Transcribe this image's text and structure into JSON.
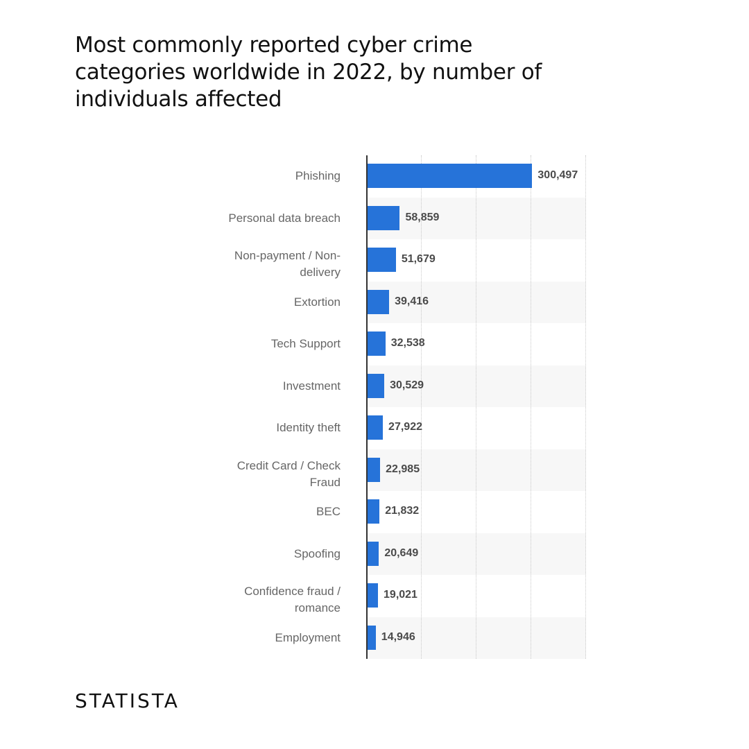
{
  "title": "Most commonly reported cyber crime categories worldwide in 2022, by number of individuals affected",
  "brand": "STATISTA",
  "chart_data": {
    "type": "bar",
    "orientation": "horizontal",
    "title": "Most commonly reported cyber crime categories worldwide in 2022, by number of individuals affected",
    "xlabel": "",
    "ylabel": "",
    "xlim": [
      0,
      400000
    ],
    "grid": true,
    "gridlines": [
      100000,
      200000,
      300000,
      400000
    ],
    "bar_color": "#2673d9",
    "categories": [
      "Phishing",
      "Personal data breach",
      "Non-payment / Non-delivery",
      "Extortion",
      "Tech Support",
      "Investment",
      "Identity theft",
      "Credit Card / Check Fraud",
      "BEC",
      "Spoofing",
      "Confidence fraud / romance",
      "Employment"
    ],
    "values": [
      300497,
      58859,
      51679,
      39416,
      32538,
      30529,
      27922,
      22985,
      21832,
      20649,
      19021,
      14946
    ],
    "value_labels": [
      "300,497",
      "58,859",
      "51,679",
      "39,416",
      "32,538",
      "30,529",
      "27,922",
      "22,985",
      "21,832",
      "20,649",
      "19,021",
      "14,946"
    ],
    "label_lines": [
      [
        "Phishing"
      ],
      [
        "Personal data breach"
      ],
      [
        "Non-payment / Non-",
        "delivery"
      ],
      [
        "Extortion"
      ],
      [
        "Tech Support"
      ],
      [
        "Investment"
      ],
      [
        "Identity theft"
      ],
      [
        "Credit Card / Check",
        "Fraud"
      ],
      [
        "BEC"
      ],
      [
        "Spoofing"
      ],
      [
        "Confidence fraud /",
        "romance"
      ],
      [
        "Employment"
      ]
    ]
  }
}
